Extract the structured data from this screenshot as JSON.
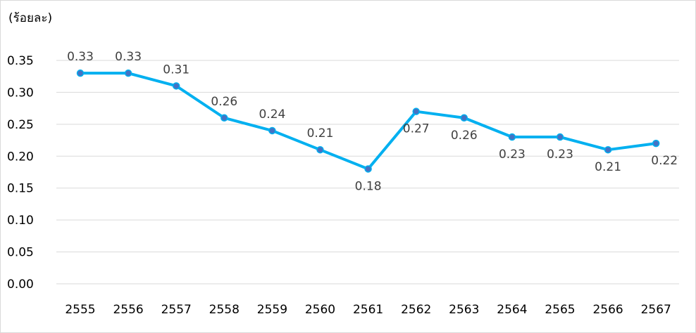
{
  "chart_data": {
    "type": "line",
    "unit_label": "(ร้อยละ)",
    "categories": [
      "2555",
      "2556",
      "2557",
      "2558",
      "2559",
      "2560",
      "2561",
      "2562",
      "2563",
      "2564",
      "2565",
      "2566",
      "2567"
    ],
    "series": [
      {
        "values": [
          0.33,
          0.33,
          0.31,
          0.26,
          0.24,
          0.21,
          0.18,
          0.27,
          0.26,
          0.23,
          0.23,
          0.21,
          0.22
        ]
      }
    ],
    "data_labels": [
      "0.33",
      "0.33",
      "0.31",
      "0.26",
      "0.24",
      "0.21",
      "0.18",
      "0.27",
      "0.26",
      "0.23",
      "0.23",
      "0.21",
      "0.22"
    ],
    "data_label_positions": [
      "above",
      "above",
      "above",
      "above",
      "above",
      "above",
      "below",
      "below",
      "below",
      "below",
      "below",
      "below",
      "below"
    ],
    "y_ticks": [
      "0.00",
      "0.05",
      "0.10",
      "0.15",
      "0.20",
      "0.25",
      "0.30",
      "0.35"
    ],
    "ylim": [
      0,
      0.35
    ],
    "grid": true,
    "line_color": "#00b0f0",
    "marker_color": "#4472c4",
    "legend": false
  }
}
